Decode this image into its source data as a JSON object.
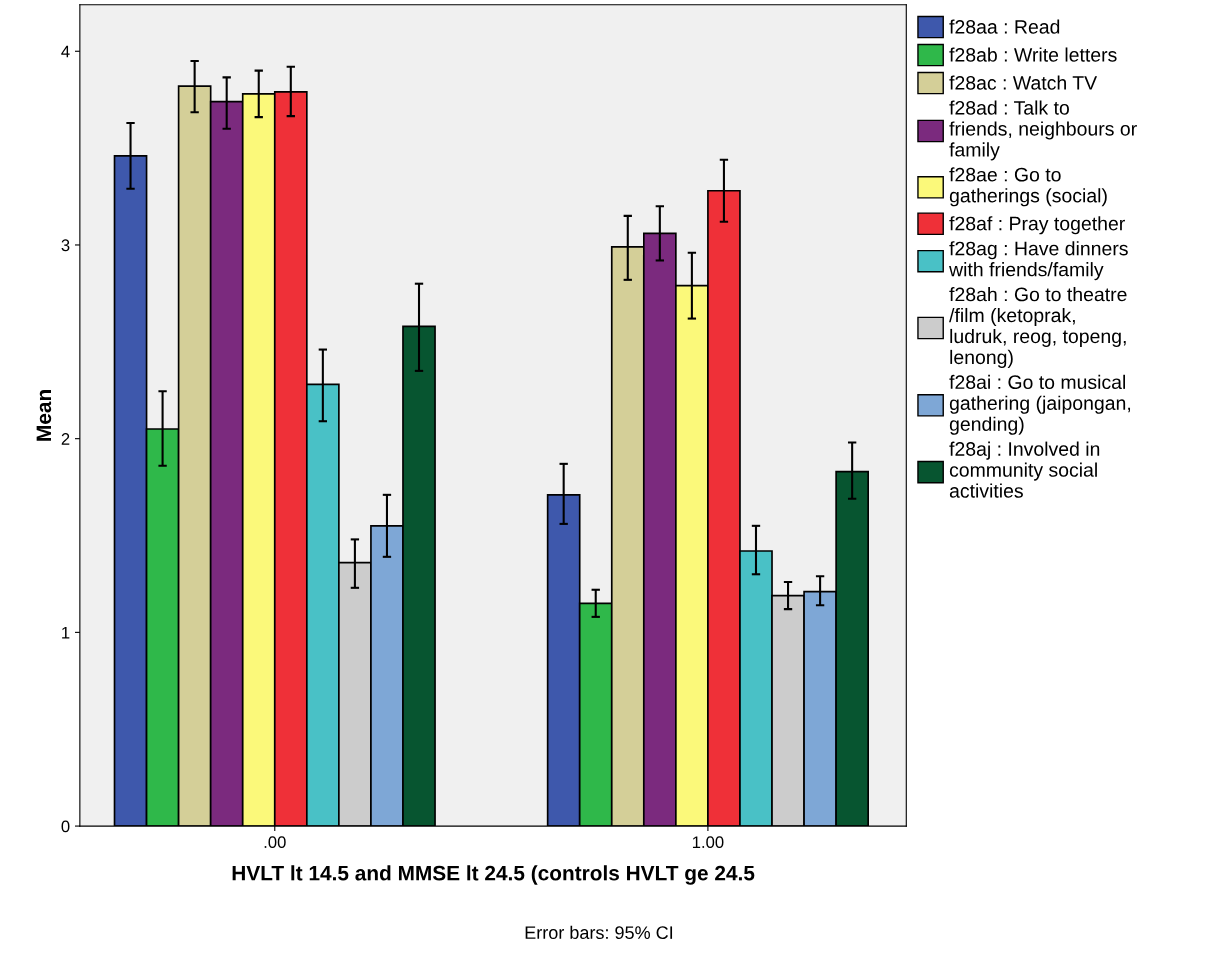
{
  "chart_data": {
    "type": "bar",
    "xlabel": "HVLT lt 14.5 and MMSE lt 24.5 (controls HVLT ge 24.5",
    "ylabel": "Mean",
    "categories": [
      ".00",
      "1.00"
    ],
    "ylim": [
      0,
      4.24
    ],
    "yticks": [
      0,
      1,
      2,
      3,
      4
    ],
    "grid": false,
    "legend": "right",
    "annotations": [
      "Error bars: 95% CI"
    ],
    "series": [
      {
        "name": "f28aa : Read",
        "color": "#3e58ac",
        "values": [
          3.46,
          1.71
        ],
        "errors": [
          [
            3.29,
            3.63
          ],
          [
            1.56,
            1.87
          ]
        ]
      },
      {
        "name": "f28ab : Write letters",
        "color": "#2fb84a",
        "values": [
          2.05,
          1.15
        ],
        "errors": [
          [
            1.86,
            2.245
          ],
          [
            1.08,
            1.22
          ]
        ]
      },
      {
        "name": "f28ac : Watch TV",
        "color": "#d4cf98",
        "values": [
          3.82,
          2.99
        ],
        "errors": [
          [
            3.685,
            3.95
          ],
          [
            2.82,
            3.15
          ]
        ]
      },
      {
        "name": "f28ad : Talk to friends, neighbours or family",
        "color": "#7b2a7e",
        "values": [
          3.74,
          3.06
        ],
        "errors": [
          [
            3.6,
            3.865
          ],
          [
            2.92,
            3.2
          ]
        ]
      },
      {
        "name": "f28ae : Go to gatherings (social)",
        "color": "#fbf97a",
        "values": [
          3.78,
          2.79
        ],
        "errors": [
          [
            3.66,
            3.9
          ],
          [
            2.62,
            2.96
          ]
        ]
      },
      {
        "name": "f28af : Pray together",
        "color": "#ef3038",
        "values": [
          3.79,
          3.28
        ],
        "errors": [
          [
            3.665,
            3.92
          ],
          [
            3.12,
            3.44
          ]
        ]
      },
      {
        "name": "f28ag : Have dinners with friends/family",
        "color": "#49c1c6",
        "values": [
          2.28,
          1.42
        ],
        "errors": [
          [
            2.09,
            2.46
          ],
          [
            1.3,
            1.55
          ]
        ]
      },
      {
        "name": "f28ah : Go to theatre /film (ketoprak, ludruk, reog, topeng, lenong)",
        "color": "#cccccc",
        "values": [
          1.36,
          1.19
        ],
        "errors": [
          [
            1.23,
            1.48
          ],
          [
            1.12,
            1.26
          ]
        ]
      },
      {
        "name": "f28ai : Go to musical gathering (jaipongan, gending)",
        "color": "#7ea7d6",
        "values": [
          1.55,
          1.21
        ],
        "errors": [
          [
            1.39,
            1.71
          ],
          [
            1.14,
            1.29
          ]
        ]
      },
      {
        "name": "f28aj : Involved in community social activities",
        "color": "#075530",
        "values": [
          2.58,
          1.83
        ],
        "errors": [
          [
            2.35,
            2.8
          ],
          [
            1.69,
            1.98
          ]
        ]
      }
    ]
  }
}
